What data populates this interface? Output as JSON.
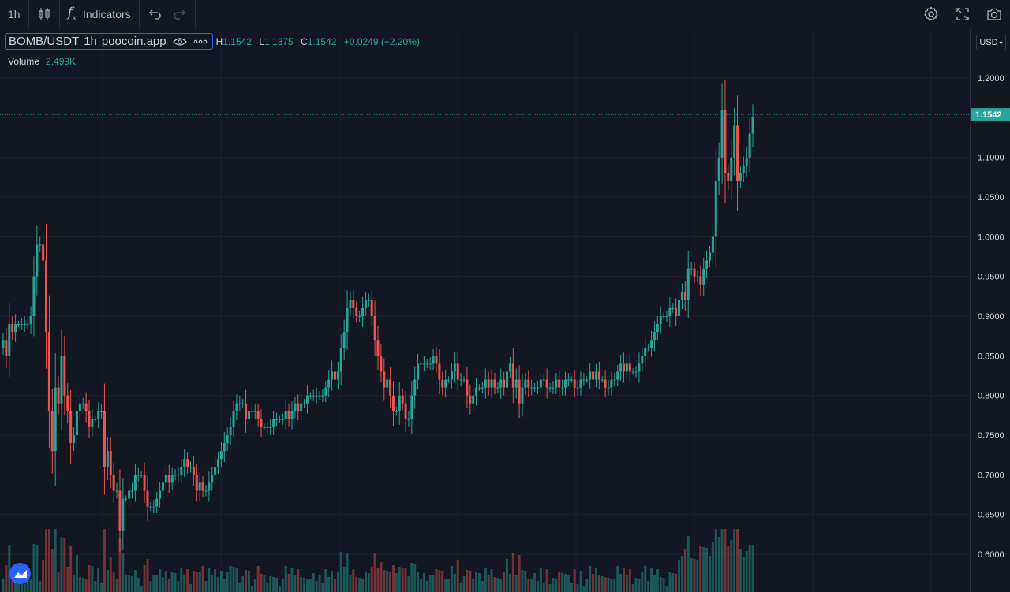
{
  "toolbar": {
    "interval": "1h",
    "indicators_label": "Indicators"
  },
  "legend": {
    "symbol": "BOMB/USDT",
    "interval": "1h",
    "source": "poocoin.app",
    "high_key": "H",
    "high": "1.1542",
    "low_key": "L",
    "low": "1.1375",
    "close_key": "C",
    "close": "1.1542",
    "change": "+0.0249 (+2.20%)",
    "volume_label": "Volume",
    "volume_value": "2.499K"
  },
  "axis": {
    "currency": "USD",
    "current_price": "1.1542"
  },
  "colors": {
    "up": "#26a69a",
    "down": "#ef5350",
    "bg": "#131722",
    "grid": "#1e222d"
  },
  "icons": [
    "candles-icon",
    "fx-icon",
    "undo-icon",
    "redo-icon",
    "gear-icon",
    "fullscreen-icon",
    "camera-icon",
    "eye-icon",
    "more-icon",
    "tradingview-logo-icon"
  ],
  "chart_data": {
    "type": "candlestick",
    "title": "BOMB/USDT · 1h · poocoin.app",
    "ylim": [
      0.58,
      1.22
    ],
    "yticks": [
      "1.2000",
      "1.1500",
      "1.1000",
      "1.0500",
      "1.0000",
      "0.9500",
      "0.9000",
      "0.8500",
      "0.8000",
      "0.7500",
      "0.7000",
      "0.6500",
      "0.6000"
    ],
    "last_price": 1.1542,
    "close": [
      0.87,
      0.85,
      0.89,
      0.88,
      0.89,
      0.89,
      0.89,
      0.89,
      0.89,
      0.9,
      0.95,
      0.99,
      0.99,
      0.97,
      0.88,
      0.78,
      0.73,
      0.81,
      0.79,
      0.85,
      0.8,
      0.78,
      0.74,
      0.75,
      0.78,
      0.79,
      0.79,
      0.78,
      0.76,
      0.77,
      0.77,
      0.78,
      0.78,
      0.71,
      0.73,
      0.7,
      0.68,
      0.68,
      0.63,
      0.67,
      0.67,
      0.68,
      0.68,
      0.7,
      0.7,
      0.7,
      0.68,
      0.66,
      0.66,
      0.66,
      0.67,
      0.68,
      0.69,
      0.7,
      0.69,
      0.7,
      0.7,
      0.7,
      0.71,
      0.72,
      0.71,
      0.71,
      0.7,
      0.68,
      0.69,
      0.68,
      0.68,
      0.69,
      0.7,
      0.71,
      0.72,
      0.73,
      0.74,
      0.75,
      0.76,
      0.78,
      0.79,
      0.79,
      0.79,
      0.77,
      0.78,
      0.78,
      0.78,
      0.77,
      0.76,
      0.76,
      0.76,
      0.76,
      0.77,
      0.77,
      0.77,
      0.77,
      0.78,
      0.77,
      0.78,
      0.79,
      0.78,
      0.79,
      0.79,
      0.8,
      0.8,
      0.8,
      0.8,
      0.8,
      0.8,
      0.81,
      0.82,
      0.83,
      0.82,
      0.83,
      0.86,
      0.88,
      0.91,
      0.92,
      0.91,
      0.9,
      0.9,
      0.91,
      0.92,
      0.92,
      0.9,
      0.87,
      0.85,
      0.83,
      0.81,
      0.82,
      0.8,
      0.78,
      0.78,
      0.8,
      0.79,
      0.77,
      0.77,
      0.8,
      0.82,
      0.84,
      0.84,
      0.84,
      0.84,
      0.84,
      0.85,
      0.84,
      0.82,
      0.81,
      0.82,
      0.82,
      0.83,
      0.84,
      0.82,
      0.82,
      0.82,
      0.8,
      0.79,
      0.8,
      0.81,
      0.81,
      0.81,
      0.82,
      0.81,
      0.82,
      0.81,
      0.81,
      0.82,
      0.81,
      0.83,
      0.84,
      0.81,
      0.82,
      0.79,
      0.81,
      0.82,
      0.81,
      0.81,
      0.81,
      0.81,
      0.82,
      0.82,
      0.81,
      0.81,
      0.81,
      0.82,
      0.81,
      0.81,
      0.82,
      0.82,
      0.82,
      0.81,
      0.81,
      0.82,
      0.82,
      0.82,
      0.83,
      0.82,
      0.83,
      0.82,
      0.82,
      0.81,
      0.81,
      0.82,
      0.82,
      0.83,
      0.84,
      0.83,
      0.84,
      0.83,
      0.83,
      0.83,
      0.84,
      0.85,
      0.86,
      0.86,
      0.87,
      0.88,
      0.89,
      0.9,
      0.9,
      0.9,
      0.91,
      0.91,
      0.9,
      0.92,
      0.93,
      0.92,
      0.96,
      0.96,
      0.95,
      0.95,
      0.94,
      0.96,
      0.97,
      0.98,
      1.0,
      1.07,
      1.1,
      1.16,
      1.08,
      1.07,
      1.1,
      1.14,
      1.07,
      1.08,
      1.09,
      1.1,
      1.13,
      1.15
    ],
    "volume_max_note": "volume bars at bottom (relative heights)"
  }
}
